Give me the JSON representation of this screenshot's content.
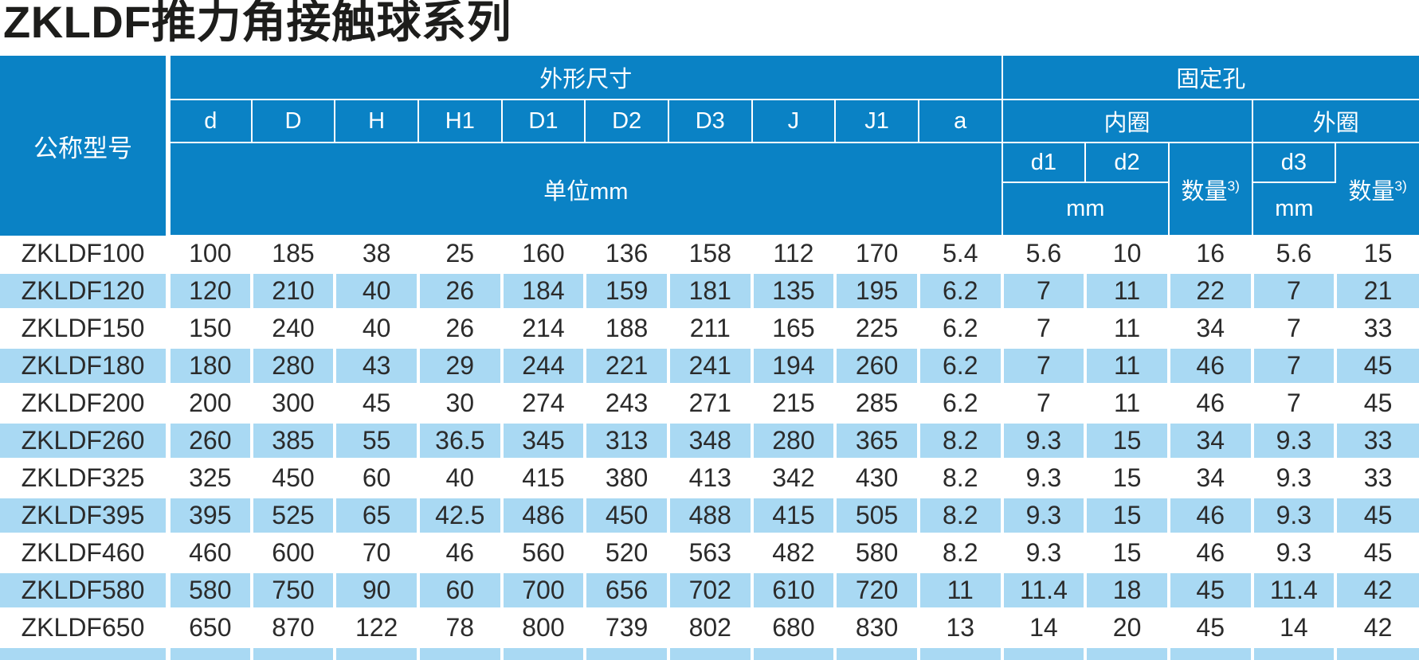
{
  "page": {
    "title": "ZKLDF推力角接触球系列"
  },
  "table": {
    "header": {
      "model_col": "公称型号",
      "dims_group": "外形尺寸",
      "holes_group": "固定孔",
      "dim_cols": [
        "d",
        "D",
        "H",
        "H1",
        "D1",
        "D2",
        "D3",
        "J",
        "J1",
        "a"
      ],
      "dims_unit": "单位mm",
      "inner_ring": "内圈",
      "outer_ring": "外圈",
      "d1": "d1",
      "d2": "d2",
      "d3": "d3",
      "qty_label": "数量",
      "qty_sup": "3)",
      "mm_inner": "mm",
      "mm_outer": "mm"
    },
    "rows": [
      {
        "model": "ZKLDF100",
        "values": [
          "100",
          "185",
          "38",
          "25",
          "160",
          "136",
          "158",
          "112",
          "170",
          "5.4",
          "5.6",
          "10",
          "16",
          "5.6",
          "15"
        ]
      },
      {
        "model": "ZKLDF120",
        "values": [
          "120",
          "210",
          "40",
          "26",
          "184",
          "159",
          "181",
          "135",
          "195",
          "6.2",
          "7",
          "11",
          "22",
          "7",
          "21"
        ]
      },
      {
        "model": "ZKLDF150",
        "values": [
          "150",
          "240",
          "40",
          "26",
          "214",
          "188",
          "211",
          "165",
          "225",
          "6.2",
          "7",
          "11",
          "34",
          "7",
          "33"
        ]
      },
      {
        "model": "ZKLDF180",
        "values": [
          "180",
          "280",
          "43",
          "29",
          "244",
          "221",
          "241",
          "194",
          "260",
          "6.2",
          "7",
          "11",
          "46",
          "7",
          "45"
        ]
      },
      {
        "model": "ZKLDF200",
        "values": [
          "200",
          "300",
          "45",
          "30",
          "274",
          "243",
          "271",
          "215",
          "285",
          "6.2",
          "7",
          "11",
          "46",
          "7",
          "45"
        ]
      },
      {
        "model": "ZKLDF260",
        "values": [
          "260",
          "385",
          "55",
          "36.5",
          "345",
          "313",
          "348",
          "280",
          "365",
          "8.2",
          "9.3",
          "15",
          "34",
          "9.3",
          "33"
        ]
      },
      {
        "model": "ZKLDF325",
        "values": [
          "325",
          "450",
          "60",
          "40",
          "415",
          "380",
          "413",
          "342",
          "430",
          "8.2",
          "9.3",
          "15",
          "34",
          "9.3",
          "33"
        ]
      },
      {
        "model": "ZKLDF395",
        "values": [
          "395",
          "525",
          "65",
          "42.5",
          "486",
          "450",
          "488",
          "415",
          "505",
          "8.2",
          "9.3",
          "15",
          "46",
          "9.3",
          "45"
        ]
      },
      {
        "model": "ZKLDF460",
        "values": [
          "460",
          "600",
          "70",
          "46",
          "560",
          "520",
          "563",
          "482",
          "580",
          "8.2",
          "9.3",
          "15",
          "46",
          "9.3",
          "45"
        ]
      },
      {
        "model": "ZKLDF580",
        "values": [
          "580",
          "750",
          "90",
          "60",
          "700",
          "656",
          "702",
          "610",
          "720",
          "11",
          "11.4",
          "18",
          "45",
          "11.4",
          "42"
        ]
      },
      {
        "model": "ZKLDF650",
        "values": [
          "650",
          "870",
          "122",
          "78",
          "800",
          "739",
          "802",
          "680",
          "830",
          "13",
          "14",
          "20",
          "45",
          "14",
          "42"
        ]
      }
    ],
    "colors": {
      "header_bg": "#0a82c5",
      "row_alt_bg": "#a9d9f3",
      "row_bg": "#ffffff",
      "header_text": "#ffffff",
      "body_text": "#2b2b2b"
    }
  }
}
